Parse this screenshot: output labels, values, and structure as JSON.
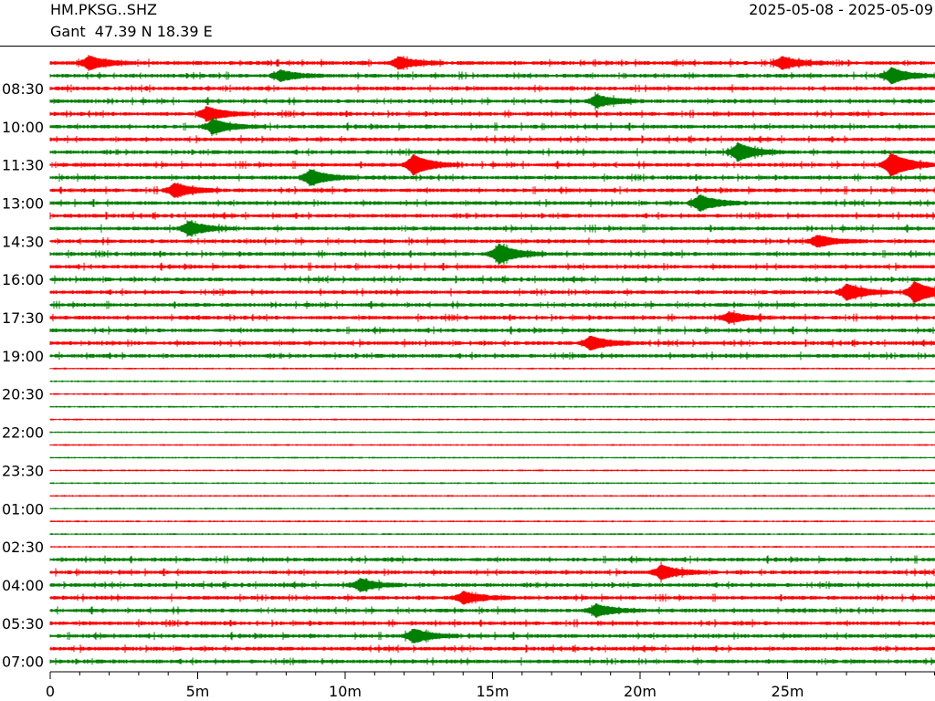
{
  "header": {
    "station": "HM.PKSG..SHZ",
    "location": "Gant  47.39 N 18.39 E",
    "date_range": "2025-05-08 - 2025-05-09"
  },
  "chart_data": {
    "type": "line",
    "description_kind": "helicorder",
    "traces_per_row_minutes": 30,
    "row_count": 48,
    "colors": [
      "#ff0000",
      "#008000"
    ],
    "xlim": [
      0,
      30
    ],
    "x_ticks": [
      {
        "value": 0,
        "label": "0"
      },
      {
        "value": 5,
        "label": "5m"
      },
      {
        "value": 10,
        "label": "10m"
      },
      {
        "value": 15,
        "label": "15m"
      },
      {
        "value": 20,
        "label": "20m"
      },
      {
        "value": 25,
        "label": "25m"
      }
    ],
    "x_minor_tick_step": 1,
    "y_tick_labels": [
      {
        "row": 2,
        "label": "08:30"
      },
      {
        "row": 5,
        "label": "10:00"
      },
      {
        "row": 8,
        "label": "11:30"
      },
      {
        "row": 11,
        "label": "13:00"
      },
      {
        "row": 14,
        "label": "14:30"
      },
      {
        "row": 17,
        "label": "16:00"
      },
      {
        "row": 20,
        "label": "17:30"
      },
      {
        "row": 23,
        "label": "19:00"
      },
      {
        "row": 26,
        "label": "20:30"
      },
      {
        "row": 29,
        "label": "22:00"
      },
      {
        "row": 32,
        "label": "23:30"
      },
      {
        "row": 35,
        "label": "01:00"
      },
      {
        "row": 38,
        "label": "02:30"
      },
      {
        "row": 41,
        "label": "04:00"
      },
      {
        "row": 44,
        "label": "05:30"
      },
      {
        "row": 47,
        "label": "07:00"
      }
    ],
    "events": [
      {
        "row": 0,
        "minute": 1.3,
        "amplitude": 7
      },
      {
        "row": 0,
        "minute": 11.8,
        "amplitude": 6
      },
      {
        "row": 0,
        "minute": 24.8,
        "amplitude": 6
      },
      {
        "row": 1,
        "minute": 7.8,
        "amplitude": 5
      },
      {
        "row": 1,
        "minute": 28.5,
        "amplitude": 8
      },
      {
        "row": 3,
        "minute": 18.5,
        "amplitude": 6
      },
      {
        "row": 4,
        "minute": 5.3,
        "amplitude": 7
      },
      {
        "row": 5,
        "minute": 5.5,
        "amplitude": 7
      },
      {
        "row": 7,
        "minute": 23.3,
        "amplitude": 9
      },
      {
        "row": 8,
        "minute": 12.3,
        "amplitude": 10
      },
      {
        "row": 8,
        "minute": 28.5,
        "amplitude": 12
      },
      {
        "row": 9,
        "minute": 8.8,
        "amplitude": 8
      },
      {
        "row": 10,
        "minute": 4.2,
        "amplitude": 7
      },
      {
        "row": 11,
        "minute": 22.0,
        "amplitude": 8
      },
      {
        "row": 13,
        "minute": 4.7,
        "amplitude": 7
      },
      {
        "row": 14,
        "minute": 26.0,
        "amplitude": 6
      },
      {
        "row": 15,
        "minute": 15.2,
        "amplitude": 10
      },
      {
        "row": 18,
        "minute": 27.0,
        "amplitude": 8
      },
      {
        "row": 18,
        "minute": 29.3,
        "amplitude": 11
      },
      {
        "row": 20,
        "minute": 23.0,
        "amplitude": 5
      },
      {
        "row": 22,
        "minute": 18.3,
        "amplitude": 7
      },
      {
        "row": 40,
        "minute": 20.7,
        "amplitude": 7
      },
      {
        "row": 41,
        "minute": 10.5,
        "amplitude": 6
      },
      {
        "row": 42,
        "minute": 14.0,
        "amplitude": 6
      },
      {
        "row": 43,
        "minute": 18.5,
        "amplitude": 6
      },
      {
        "row": 45,
        "minute": 12.3,
        "amplitude": 7
      }
    ]
  }
}
